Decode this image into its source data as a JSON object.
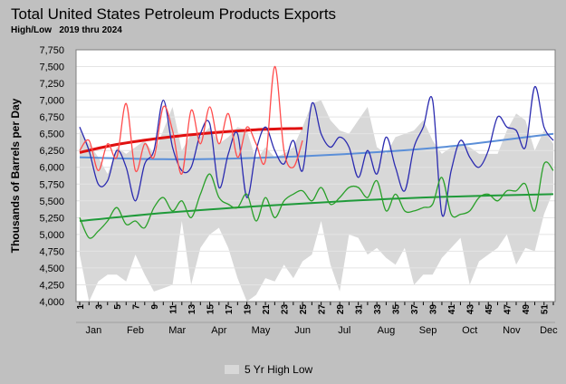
{
  "title": "Total United States Petroleum Products Exports",
  "subtitle": "High/Low   2019 thru 2024",
  "colors": {
    "background": "#c0c0c0",
    "plot_background": "#ffffff",
    "band": "#d8d8d8",
    "current_year": "#2b2bb0",
    "prior_year": "#ff4d4d",
    "trend_current": "#5b8fd8",
    "trend_prior": "#e01010",
    "green_line": "#2aa02a",
    "green_trend": "#1f9a3a"
  },
  "chart_data": {
    "type": "line",
    "title": "Total United States Petroleum Products Exports",
    "subtitle": "High/Low   2019 thru 2024",
    "ylabel": "Thousands of Barrels per Day",
    "xlabel": "",
    "ylim": [
      4000,
      7750
    ],
    "yticks": [
      "7,750",
      "7,500",
      "7,250",
      "7,000",
      "6,750",
      "6,500",
      "6,250",
      "6,000",
      "5,750",
      "5,500",
      "5,250",
      "5,000",
      "4,750",
      "4,500",
      "4,250",
      "4,000"
    ],
    "ytick_values": [
      7750,
      7500,
      7250,
      7000,
      6750,
      6500,
      6250,
      6000,
      5750,
      5500,
      5250,
      5000,
      4750,
      4500,
      4250,
      4000
    ],
    "xlim": [
      1,
      52
    ],
    "xticks": [
      "1",
      "3",
      "5",
      "7",
      "9",
      "11",
      "13",
      "15",
      "17",
      "19",
      "21",
      "23",
      "25",
      "27",
      "29",
      "31",
      "33",
      "35",
      "37",
      "39",
      "41",
      "43",
      "45",
      "47",
      "49",
      "51"
    ],
    "xtick_values": [
      1,
      3,
      5,
      7,
      9,
      11,
      13,
      15,
      17,
      19,
      21,
      23,
      25,
      27,
      29,
      31,
      33,
      35,
      37,
      39,
      41,
      43,
      45,
      47,
      49,
      51
    ],
    "months": [
      "Jan",
      "Feb",
      "Mar",
      "Apr",
      "May",
      "Jun",
      "Jul",
      "Aug",
      "Sep",
      "Oct",
      "Nov",
      "Dec"
    ],
    "month_weeks": [
      2.5,
      7,
      11.5,
      16,
      20.5,
      25,
      29.5,
      34,
      38.5,
      43,
      47.5,
      51.5
    ],
    "legend": [
      {
        "label": "5 Yr High Low",
        "position": "bottom-center"
      }
    ],
    "grid": true,
    "band": {
      "name": "5 Yr High Low",
      "x": [
        1,
        2,
        3,
        4,
        5,
        6,
        7,
        8,
        9,
        10,
        11,
        12,
        13,
        14,
        15,
        16,
        17,
        18,
        19,
        20,
        21,
        22,
        23,
        24,
        25,
        26,
        27,
        28,
        29,
        30,
        31,
        32,
        33,
        34,
        35,
        36,
        37,
        38,
        39,
        40,
        41,
        42,
        43,
        44,
        45,
        46,
        47,
        48,
        49,
        50,
        51,
        52
      ],
      "high": [
        6550,
        6350,
        6150,
        5900,
        6300,
        6200,
        6300,
        6400,
        6200,
        6550,
        6900,
        6250,
        6500,
        6450,
        6600,
        6350,
        6450,
        6600,
        6550,
        6100,
        6300,
        6150,
        6200,
        6300,
        6600,
        6950,
        7000,
        6700,
        6550,
        6500,
        6700,
        6900,
        6300,
        6200,
        6450,
        6500,
        6550,
        6700,
        6400,
        6200,
        6300,
        6350,
        6300,
        6200,
        6200,
        6200,
        6550,
        6800,
        6700,
        6250,
        6550,
        6350
      ],
      "low": [
        4700,
        4000,
        4300,
        4400,
        4400,
        4300,
        4700,
        4400,
        4150,
        4200,
        4250,
        5200,
        4250,
        4800,
        5000,
        5100,
        4800,
        4350,
        4000,
        4100,
        4350,
        4300,
        4550,
        4350,
        4600,
        4700,
        5200,
        4550,
        4150,
        5000,
        4950,
        4700,
        4800,
        4650,
        4550,
        4800,
        4250,
        4400,
        4400,
        4650,
        4800,
        4950,
        4250,
        4600,
        4700,
        4800,
        5000,
        4550,
        4800,
        4750,
        5300,
        5650
      ]
    },
    "series": [
      {
        "x": [
          1,
          2,
          3,
          4,
          5,
          6,
          7,
          8,
          9,
          10,
          11,
          12,
          13,
          14,
          15,
          16,
          17,
          18,
          19,
          20,
          21,
          22,
          23,
          24,
          25,
          26,
          27,
          28,
          29,
          30,
          31,
          32,
          33,
          34,
          35,
          36,
          37,
          38,
          39,
          40,
          41,
          42,
          43,
          44,
          45,
          46,
          47,
          48,
          49,
          50,
          51,
          52
        ],
        "values": [
          6600,
          6250,
          5750,
          5800,
          6250,
          6000,
          5500,
          6050,
          6250,
          7000,
          6300,
          5950,
          6000,
          6500,
          6650,
          5700,
          6200,
          6500,
          5550,
          6250,
          6600,
          6250,
          6050,
          6400,
          5950,
          6950,
          6500,
          6300,
          6450,
          6300,
          5850,
          6250,
          5900,
          6450,
          6000,
          5650,
          6300,
          6600,
          7000,
          5300,
          5950,
          6400,
          6150,
          6000,
          6250,
          6750,
          6600,
          6550,
          6300,
          7200,
          6600,
          6400
        ]
      },
      {
        "x": [
          1,
          2,
          3,
          4,
          5,
          6,
          7,
          8,
          9,
          10,
          11,
          12,
          13,
          14,
          15,
          16,
          17,
          18,
          19,
          20,
          21,
          22,
          23,
          24,
          25
        ],
        "values": [
          6250,
          6400,
          5950,
          6350,
          6150,
          6950,
          5950,
          6350,
          6150,
          6900,
          6550,
          5900,
          6850,
          6350,
          6900,
          6350,
          6800,
          6150,
          6600,
          6350,
          6100,
          7500,
          6250,
          6000,
          6400
        ]
      },
      {
        "x": [
          1,
          2,
          3,
          4,
          5,
          6,
          7,
          8,
          9,
          10,
          11,
          12,
          13,
          14,
          15,
          16,
          17,
          18,
          19,
          20,
          21,
          22,
          23,
          24,
          25,
          26,
          27,
          28,
          29,
          30,
          31,
          32,
          33,
          34,
          35,
          36,
          37,
          38,
          39,
          40,
          41,
          42,
          43,
          44,
          45,
          46,
          47,
          48,
          49,
          50,
          51,
          52
        ],
        "values": [
          5250,
          4950,
          5050,
          5200,
          5400,
          5150,
          5200,
          5100,
          5400,
          5550,
          5350,
          5500,
          5250,
          5600,
          5900,
          5550,
          5450,
          5400,
          5600,
          5200,
          5550,
          5250,
          5500,
          5600,
          5650,
          5500,
          5700,
          5450,
          5550,
          5700,
          5700,
          5550,
          5800,
          5350,
          5600,
          5350,
          5350,
          5400,
          5450,
          5850,
          5300,
          5300,
          5350,
          5550,
          5600,
          5500,
          5650,
          5650,
          5750,
          5350,
          6050,
          5950
        ]
      }
    ],
    "trends": [
      {
        "x": [
          1,
          10,
          20,
          30,
          40,
          52
        ],
        "values": [
          6150,
          6120,
          6140,
          6200,
          6300,
          6500
        ]
      },
      {
        "x": [
          1,
          5,
          10,
          15,
          20,
          25
        ],
        "values": [
          6220,
          6340,
          6440,
          6510,
          6560,
          6580
        ]
      },
      {
        "x": [
          1,
          10,
          20,
          30,
          40,
          52
        ],
        "values": [
          5200,
          5320,
          5420,
          5500,
          5560,
          5600
        ]
      }
    ]
  }
}
